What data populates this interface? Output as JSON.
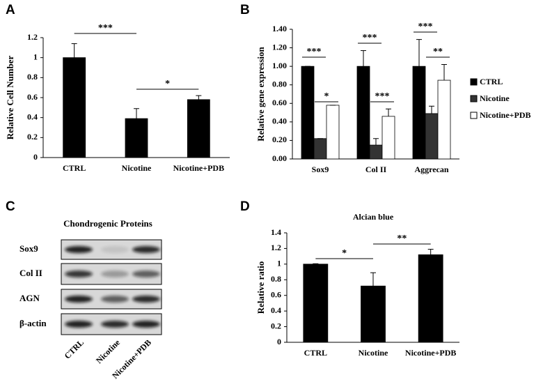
{
  "chart_data": [
    {
      "type": "bar",
      "panel": "A",
      "ylabel": "Relative Cell Number",
      "categories": [
        "CTRL",
        "Nicotine",
        "Nicotine+PDB"
      ],
      "values": [
        1.0,
        0.39,
        0.58
      ],
      "errors": [
        0.14,
        0.1,
        0.04
      ],
      "color": "#000000",
      "ylim": [
        0,
        1.2
      ],
      "yticks": [
        0,
        0.2,
        0.4,
        0.6,
        0.8,
        1,
        1.2
      ],
      "annotations": [
        "***",
        "*"
      ]
    },
    {
      "type": "bar",
      "panel": "B",
      "ylabel": "Relative gene expression",
      "categories": [
        "Sox9",
        "Col II",
        "Aggrecan"
      ],
      "series": [
        {
          "name": "CTRL",
          "color": "#000000",
          "values": [
            1.0,
            1.0,
            1.0
          ],
          "errors": [
            0,
            0.17,
            0.29
          ]
        },
        {
          "name": "Nicotine",
          "color": "#333333",
          "values": [
            0.22,
            0.15,
            0.49
          ],
          "errors": [
            0,
            0.07,
            0.08
          ]
        },
        {
          "name": "Nicotine+PDB",
          "color": "#ffffff",
          "values": [
            0.58,
            0.46,
            0.85
          ],
          "errors": [
            0,
            0.08,
            0.17
          ]
        }
      ],
      "ylim": [
        0,
        1.4
      ],
      "yticks": [
        {
          "value": 0,
          "label": "0.00"
        },
        {
          "value": 0.2,
          "label": "0.20"
        },
        {
          "value": 0.4,
          "label": "0.40"
        },
        {
          "value": 0.6,
          "label": "0.60"
        },
        {
          "value": 0.8,
          "label": "0.80"
        },
        {
          "value": 1,
          "label": "1.00"
        },
        {
          "value": 1.2,
          "label": "1.20"
        },
        {
          "value": 1.4,
          "label": "1.40"
        }
      ],
      "annotations": [
        "***",
        "*",
        "***",
        "***",
        "***",
        "**"
      ],
      "legend": "right"
    },
    {
      "type": "bar",
      "panel": "D",
      "title": "Alcian blue",
      "ylabel": "Relative ratio",
      "categories": [
        "CTRL",
        "Nicotine",
        "Nicotine+PDB"
      ],
      "values": [
        1.0,
        0.72,
        1.12
      ],
      "errors": [
        0.005,
        0.17,
        0.07
      ],
      "color": "#000000",
      "ylim": [
        0,
        1.4
      ],
      "yticks": [
        0,
        0.2,
        0.4,
        0.6,
        0.8,
        1,
        1.2,
        1.4
      ],
      "annotations": [
        "*",
        "**"
      ]
    }
  ],
  "blot": {
    "panel": "C",
    "title": "Chondrogenic Proteins",
    "rows": [
      "Sox9",
      "Col II",
      "AGN",
      "β-actin"
    ],
    "lanes": [
      "CTRL",
      "Nicotine",
      "Nicotine+PDB"
    ]
  }
}
